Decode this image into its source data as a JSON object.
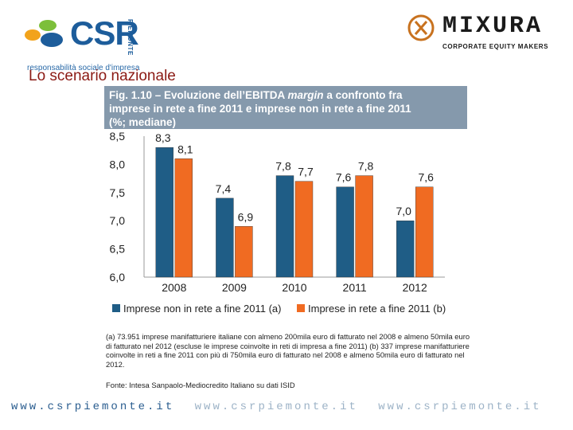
{
  "header": {
    "left_logo": {
      "text": "CSR",
      "vertical_text": "PIEMONTE",
      "tagline": "responsabilità sociale d'impresa",
      "colors": [
        "#f2a31c",
        "#7cbf3a",
        "#1d5d9b"
      ]
    },
    "right_logo": {
      "brand": "MIXURA",
      "subtitle": "CORPORATE EQUITY MAKERS"
    },
    "section_title": "Lo scenario nazionale"
  },
  "figure": {
    "title_line1_a": "Fig. 1.10 – Evoluzione dell’EBITDA ",
    "title_line1_em": "margin",
    "title_line1_b": " a confronto fra",
    "title_line2": "imprese in rete a fine 2011 e imprese non in rete a fine 2011",
    "title_line3": "(%; mediane)",
    "notes": "(a) 73.951 imprese manifatturiere italiane con almeno 200mila euro di fatturato nel 2008 e almeno 50mila euro di fatturato nel 2012 (escluse le imprese coinvolte in reti di impresa a fine 2011) (b) 337 imprese manifatturiere coinvolte in reti a fine 2011 con più di 750mila euro di fatturato nel 2008 e almeno 50mila euro di fatturato nel 2012.",
    "source": "Fonte: Intesa Sanpaolo-Mediocredito Italiano su dati ISID"
  },
  "chart_data": {
    "type": "bar",
    "title": "Evoluzione dell’EBITDA margin a confronto fra imprese in rete a fine 2011 e imprese non in rete a fine 2011 (%; mediane)",
    "categories": [
      "2008",
      "2009",
      "2010",
      "2011",
      "2012"
    ],
    "series": [
      {
        "name": "Imprese non in rete a fine 2011 (a)",
        "color": "#1f5d86",
        "values": [
          8.3,
          7.4,
          7.8,
          7.6,
          7.0
        ],
        "labels": [
          "8,3",
          "7,4",
          "7,8",
          "7,6",
          "7,0"
        ]
      },
      {
        "name": "Imprese in rete a fine 2011 (b)",
        "color": "#f06b22",
        "values": [
          8.1,
          6.9,
          7.7,
          7.8,
          7.6
        ],
        "labels": [
          "8,1",
          "6,9",
          "7,7",
          "7,8",
          "7,6"
        ]
      }
    ],
    "yticks": [
      6.0,
      6.5,
      7.0,
      7.5,
      8.0,
      8.5
    ],
    "ytick_labels": [
      "6,0",
      "6,5",
      "7,0",
      "7,5",
      "8,0",
      "8,5"
    ],
    "ylim": [
      6.0,
      8.5
    ],
    "xlabel": "",
    "ylabel": "",
    "grid": false,
    "legend_position": "bottom"
  },
  "footer": {
    "url_1": "www.csrpiemonte.it",
    "url_2": "www.csrpiemonte.it",
    "url_3": "www.csrpiemonte.it"
  }
}
